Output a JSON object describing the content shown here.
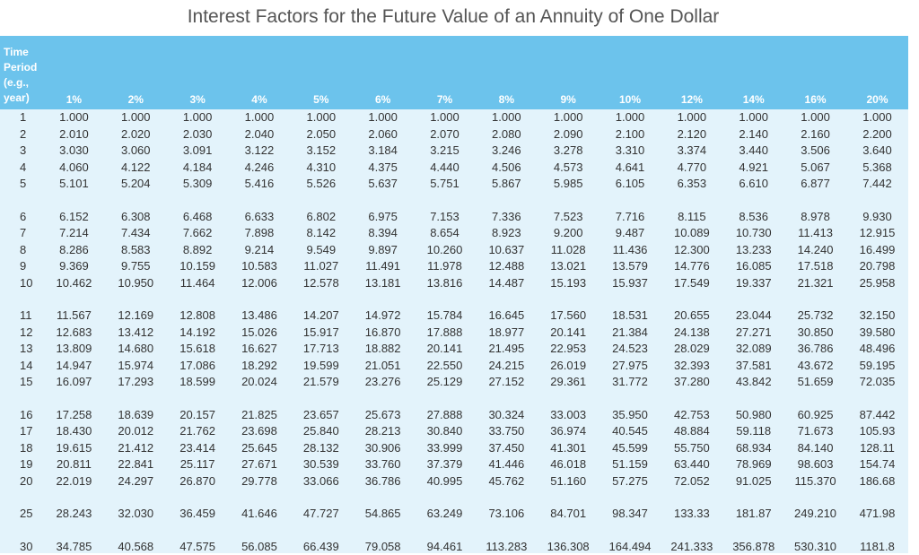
{
  "title": "Interest Factors for the Future Value of an Annuity of One Dollar",
  "table": {
    "period_header": "Time Period (e.g., year)",
    "columns": [
      "1%",
      "2%",
      "3%",
      "4%",
      "5%",
      "6%",
      "7%",
      "8%",
      "9%",
      "10%",
      "12%",
      "14%",
      "16%",
      "20%"
    ],
    "groups": [
      [
        {
          "period": "1",
          "values": [
            "1.000",
            "1.000",
            "1.000",
            "1.000",
            "1.000",
            "1.000",
            "1.000",
            "1.000",
            "1.000",
            "1.000",
            "1.000",
            "1.000",
            "1.000",
            "1.000"
          ]
        },
        {
          "period": "2",
          "values": [
            "2.010",
            "2.020",
            "2.030",
            "2.040",
            "2.050",
            "2.060",
            "2.070",
            "2.080",
            "2.090",
            "2.100",
            "2.120",
            "2.140",
            "2.160",
            "2.200"
          ]
        },
        {
          "period": "3",
          "values": [
            "3.030",
            "3.060",
            "3.091",
            "3.122",
            "3.152",
            "3.184",
            "3.215",
            "3.246",
            "3.278",
            "3.310",
            "3.374",
            "3.440",
            "3.506",
            "3.640"
          ]
        },
        {
          "period": "4",
          "values": [
            "4.060",
            "4.122",
            "4.184",
            "4.246",
            "4.310",
            "4.375",
            "4.440",
            "4.506",
            "4.573",
            "4.641",
            "4.770",
            "4.921",
            "5.067",
            "5.368"
          ]
        },
        {
          "period": "5",
          "values": [
            "5.101",
            "5.204",
            "5.309",
            "5.416",
            "5.526",
            "5.637",
            "5.751",
            "5.867",
            "5.985",
            "6.105",
            "6.353",
            "6.610",
            "6.877",
            "7.442"
          ]
        }
      ],
      [
        {
          "period": "6",
          "values": [
            "6.152",
            "6.308",
            "6.468",
            "6.633",
            "6.802",
            "6.975",
            "7.153",
            "7.336",
            "7.523",
            "7.716",
            "8.115",
            "8.536",
            "8.978",
            "9.930"
          ]
        },
        {
          "period": "7",
          "values": [
            "7.214",
            "7.434",
            "7.662",
            "7.898",
            "8.142",
            "8.394",
            "8.654",
            "8.923",
            "9.200",
            "9.487",
            "10.089",
            "10.730",
            "11.413",
            "12.915"
          ]
        },
        {
          "period": "8",
          "values": [
            "8.286",
            "8.583",
            "8.892",
            "9.214",
            "9.549",
            "9.897",
            "10.260",
            "10.637",
            "11.028",
            "11.436",
            "12.300",
            "13.233",
            "14.240",
            "16.499"
          ]
        },
        {
          "period": "9",
          "values": [
            "9.369",
            "9.755",
            "10.159",
            "10.583",
            "11.027",
            "11.491",
            "11.978",
            "12.488",
            "13.021",
            "13.579",
            "14.776",
            "16.085",
            "17.518",
            "20.798"
          ]
        },
        {
          "period": "10",
          "values": [
            "10.462",
            "10.950",
            "11.464",
            "12.006",
            "12.578",
            "13.181",
            "13.816",
            "14.487",
            "15.193",
            "15.937",
            "17.549",
            "19.337",
            "21.321",
            "25.958"
          ]
        }
      ],
      [
        {
          "period": "11",
          "values": [
            "11.567",
            "12.169",
            "12.808",
            "13.486",
            "14.207",
            "14.972",
            "15.784",
            "16.645",
            "17.560",
            "18.531",
            "20.655",
            "23.044",
            "25.732",
            "32.150"
          ]
        },
        {
          "period": "12",
          "values": [
            "12.683",
            "13.412",
            "14.192",
            "15.026",
            "15.917",
            "16.870",
            "17.888",
            "18.977",
            "20.141",
            "21.384",
            "24.138",
            "27.271",
            "30.850",
            "39.580"
          ]
        },
        {
          "period": "13",
          "values": [
            "13.809",
            "14.680",
            "15.618",
            "16.627",
            "17.713",
            "18.882",
            "20.141",
            "21.495",
            "22.953",
            "24.523",
            "28.029",
            "32.089",
            "36.786",
            "48.496"
          ]
        },
        {
          "period": "14",
          "values": [
            "14.947",
            "15.974",
            "17.086",
            "18.292",
            "19.599",
            "21.051",
            "22.550",
            "24.215",
            "26.019",
            "27.975",
            "32.393",
            "37.581",
            "43.672",
            "59.195"
          ]
        },
        {
          "period": "15",
          "values": [
            "16.097",
            "17.293",
            "18.599",
            "20.024",
            "21.579",
            "23.276",
            "25.129",
            "27.152",
            "29.361",
            "31.772",
            "37.280",
            "43.842",
            "51.659",
            "72.035"
          ]
        }
      ],
      [
        {
          "period": "16",
          "values": [
            "17.258",
            "18.639",
            "20.157",
            "21.825",
            "23.657",
            "25.673",
            "27.888",
            "30.324",
            "33.003",
            "35.950",
            "42.753",
            "50.980",
            "60.925",
            "87.442"
          ]
        },
        {
          "period": "17",
          "values": [
            "18.430",
            "20.012",
            "21.762",
            "23.698",
            "25.840",
            "28.213",
            "30.840",
            "33.750",
            "36.974",
            "40.545",
            "48.884",
            "59.118",
            "71.673",
            "105.93"
          ]
        },
        {
          "period": "18",
          "values": [
            "19.615",
            "21.412",
            "23.414",
            "25.645",
            "28.132",
            "30.906",
            "33.999",
            "37.450",
            "41.301",
            "45.599",
            "55.750",
            "68.934",
            "84.140",
            "128.11"
          ]
        },
        {
          "period": "19",
          "values": [
            "20.811",
            "22.841",
            "25.117",
            "27.671",
            "30.539",
            "33.760",
            "37.379",
            "41.446",
            "46.018",
            "51.159",
            "63.440",
            "78.969",
            "98.603",
            "154.74"
          ]
        },
        {
          "period": "20",
          "values": [
            "22.019",
            "24.297",
            "26.870",
            "29.778",
            "33.066",
            "36.786",
            "40.995",
            "45.762",
            "51.160",
            "57.275",
            "72.052",
            "91.025",
            "115.370",
            "186.68"
          ]
        }
      ],
      [
        {
          "period": "25",
          "values": [
            "28.243",
            "32.030",
            "36.459",
            "41.646",
            "47.727",
            "54.865",
            "63.249",
            "73.106",
            "84.701",
            "98.347",
            "133.33",
            "181.87",
            "249.210",
            "471.98"
          ]
        }
      ],
      [
        {
          "period": "30",
          "values": [
            "34.785",
            "40.568",
            "47.575",
            "56.085",
            "66.439",
            "79.058",
            "94.461",
            "113.283",
            "136.308",
            "164.494",
            "241.333",
            "356.878",
            "530.310",
            "1181.8"
          ]
        }
      ]
    ]
  }
}
